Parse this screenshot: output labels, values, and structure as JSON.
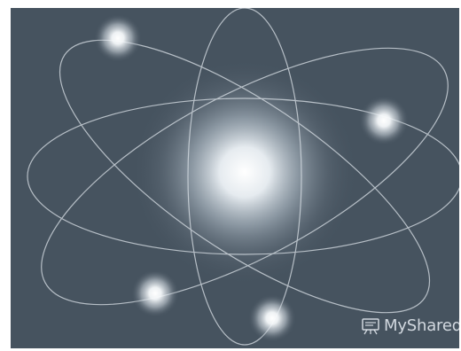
{
  "image": {
    "background_color": "#46535f",
    "orbit_color": "#d6dde3",
    "glow_color": "#ffffff",
    "objects": [
      "central-glow",
      "orbit-ellipses",
      "electron-glows"
    ]
  },
  "watermark": {
    "text": "MyShared",
    "icon": "presentation-board-icon"
  }
}
